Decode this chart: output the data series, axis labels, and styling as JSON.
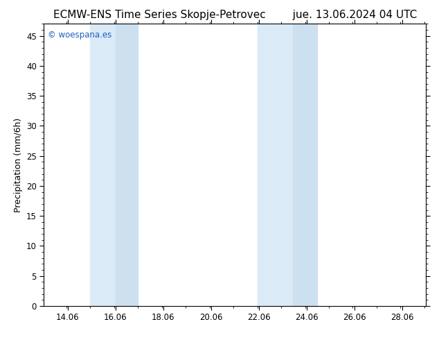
{
  "title": "ECMW-ENS Time Series Skopje-Petrovec        jue. 13.06.2024 04 UTC",
  "ylabel": "Precipitation (mm/6h)",
  "xlim": [
    13.06,
    29.06
  ],
  "ylim": [
    0,
    47
  ],
  "yticks": [
    0,
    5,
    10,
    15,
    20,
    25,
    30,
    35,
    40,
    45
  ],
  "xticks": [
    14.06,
    16.06,
    18.06,
    20.06,
    22.06,
    24.06,
    26.06,
    28.06
  ],
  "xtick_labels": [
    "14.06",
    "16.06",
    "18.06",
    "20.06",
    "22.06",
    "24.06",
    "26.06",
    "28.06"
  ],
  "shaded_regions": [
    {
      "xmin": 15.0,
      "xmax": 16.06,
      "color": "#daeaf7"
    },
    {
      "xmin": 16.06,
      "xmax": 17.0,
      "color": "#cce0f0"
    },
    {
      "xmin": 22.0,
      "xmax": 23.5,
      "color": "#daeaf7"
    },
    {
      "xmin": 23.5,
      "xmax": 24.5,
      "color": "#cce0f0"
    }
  ],
  "watermark_text": "© woespana.es",
  "watermark_color": "#1a5fbf",
  "bg_color": "#ffffff",
  "title_fontsize": 11,
  "label_fontsize": 9,
  "tick_fontsize": 8.5
}
